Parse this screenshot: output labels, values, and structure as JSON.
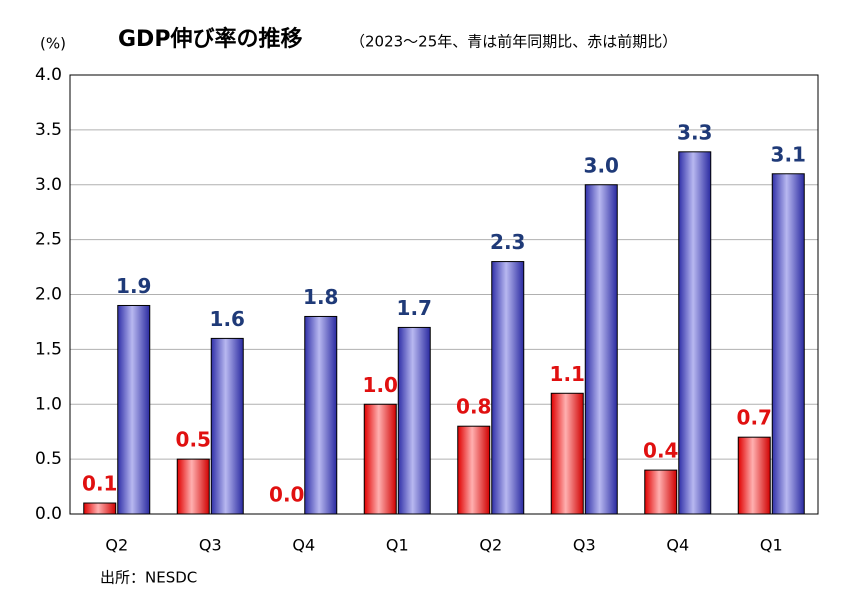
{
  "chart_data": {
    "type": "bar",
    "title": "GDP伸び率の推移",
    "subtitle": "（2023～25年、青は前年同期比、赤は前期比）",
    "y_unit": "(%)",
    "source": "出所：NESDC",
    "categories": [
      "Q2",
      "Q3",
      "Q4",
      "Q1",
      "Q2",
      "Q3",
      "Q4",
      "Q1"
    ],
    "series": [
      {
        "color": "#ff0000",
        "label_color": "#e01010",
        "values": [
          0.1,
          0.5,
          0.0,
          1.0,
          0.8,
          1.1,
          0.4,
          0.7
        ],
        "value_labels": [
          "0.1",
          "0.5",
          "0.0",
          "1.0",
          "0.8",
          "1.1",
          "0.4",
          "0.7"
        ]
      },
      {
        "color": "#3a3ab4",
        "label_color": "#1f3a78",
        "values": [
          1.9,
          1.6,
          1.8,
          1.7,
          2.3,
          3.0,
          3.3,
          3.1
        ],
        "value_labels": [
          "1.9",
          "1.6",
          "1.8",
          "1.7",
          "2.3",
          "3.0",
          "3.3",
          "3.1"
        ]
      }
    ],
    "ylim": [
      0,
      4
    ],
    "yticks": [
      {
        "value": 0,
        "label": "0.0"
      },
      0.5,
      {
        "value": 1,
        "label": "1.0"
      },
      1.5,
      {
        "value": 2,
        "label": "2.0"
      },
      2.5,
      {
        "value": 3,
        "label": "3.0"
      },
      3.5,
      {
        "value": 4,
        "label": "4.0"
      }
    ],
    "grid": true
  }
}
